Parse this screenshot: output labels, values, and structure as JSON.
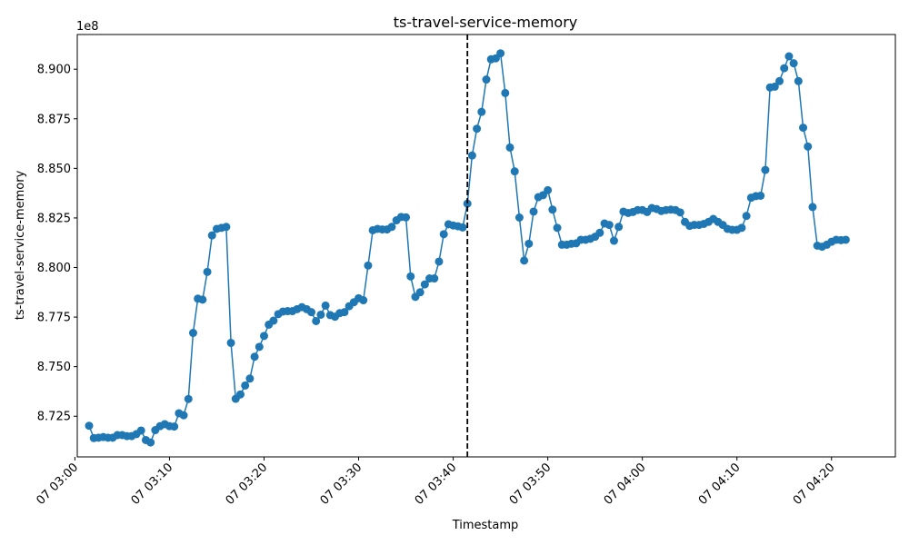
{
  "chart_data": {
    "type": "line",
    "title": "ts-travel-service-memory",
    "xlabel": "Timestamp",
    "ylabel": "ts-travel-service-memory",
    "y_offset_text": "1e8",
    "y_multiplier": 100000000,
    "ylim": [
      8.7045,
      8.9175
    ],
    "xlim": [
      "07 03:00:15",
      "07 04:26:45"
    ],
    "x_tick_labels": [
      "07 03:00",
      "07 03:10",
      "07 03:20",
      "07 03:30",
      "07 03:40",
      "07 03:50",
      "07 04:00",
      "07 04:10",
      "07 04:20"
    ],
    "x_tick_times": [
      "07 03:00:00",
      "07 03:10:00",
      "07 03:20:00",
      "07 03:30:00",
      "07 03:40:00",
      "07 03:50:00",
      "07 04:00:00",
      "07 04:10:00",
      "07 04:20:00"
    ],
    "y_ticks": [
      8.725,
      8.75,
      8.775,
      8.8,
      8.825,
      8.85,
      8.875,
      8.9
    ],
    "y_tick_labels": [
      "8.725",
      "8.750",
      "8.775",
      "8.800",
      "8.825",
      "8.850",
      "8.875",
      "8.900"
    ],
    "grid": false,
    "legend": "none",
    "line_color": "#1f77b4",
    "vline": {
      "x": "07 03:41:30",
      "color": "#000000",
      "style": "dashed"
    },
    "series": [
      {
        "x": [
          "07 03:01:30",
          "07 03:02:00",
          "07 03:02:30",
          "07 03:03:00",
          "07 03:03:30",
          "07 03:04:00",
          "07 03:04:30",
          "07 03:05:00",
          "07 03:05:30",
          "07 03:06:00",
          "07 03:06:30",
          "07 03:07:00",
          "07 03:07:30",
          "07 03:08:00",
          "07 03:08:30",
          "07 03:09:00",
          "07 03:09:30",
          "07 03:10:00",
          "07 03:10:30",
          "07 03:11:00",
          "07 03:11:30",
          "07 03:12:00",
          "07 03:12:30",
          "07 03:13:00",
          "07 03:13:30",
          "07 03:14:00",
          "07 03:14:30",
          "07 03:15:00",
          "07 03:15:30",
          "07 03:16:00",
          "07 03:16:30",
          "07 03:17:00",
          "07 03:17:30",
          "07 03:18:00",
          "07 03:18:30",
          "07 03:19:00",
          "07 03:19:30",
          "07 03:20:00",
          "07 03:20:30",
          "07 03:21:00",
          "07 03:21:30",
          "07 03:22:00",
          "07 03:22:30",
          "07 03:23:00",
          "07 03:23:30",
          "07 03:24:00",
          "07 03:24:30",
          "07 03:25:00",
          "07 03:25:30",
          "07 03:26:00",
          "07 03:26:30",
          "07 03:27:00",
          "07 03:27:30",
          "07 03:28:00",
          "07 03:28:30",
          "07 03:29:00",
          "07 03:29:30",
          "07 03:30:00",
          "07 03:30:30",
          "07 03:31:00",
          "07 03:31:30",
          "07 03:32:00",
          "07 03:32:30",
          "07 03:33:00",
          "07 03:33:30",
          "07 03:34:00",
          "07 03:34:30",
          "07 03:35:00",
          "07 03:35:30",
          "07 03:36:00",
          "07 03:36:30",
          "07 03:37:00",
          "07 03:37:30",
          "07 03:38:00",
          "07 03:38:30",
          "07 03:39:00",
          "07 03:39:30",
          "07 03:40:00",
          "07 03:40:30",
          "07 03:41:00",
          "07 03:41:30",
          "07 03:42:00",
          "07 03:42:30",
          "07 03:43:00",
          "07 03:43:30",
          "07 03:44:00",
          "07 03:44:30",
          "07 03:45:00",
          "07 03:45:30",
          "07 03:46:00",
          "07 03:46:30",
          "07 03:47:00",
          "07 03:47:30",
          "07 03:48:00",
          "07 03:48:30",
          "07 03:49:00",
          "07 03:49:30",
          "07 03:50:00",
          "07 03:50:30",
          "07 03:51:00",
          "07 03:51:30",
          "07 03:52:00",
          "07 03:52:30",
          "07 03:53:00",
          "07 03:53:30",
          "07 03:54:00",
          "07 03:54:30",
          "07 03:55:00",
          "07 03:55:30",
          "07 03:56:00",
          "07 03:56:30",
          "07 03:57:00",
          "07 03:57:30",
          "07 03:58:00",
          "07 03:58:30",
          "07 03:59:00",
          "07 03:59:30",
          "07 04:00:00",
          "07 04:00:30",
          "07 04:01:00",
          "07 04:01:30",
          "07 04:02:00",
          "07 04:02:30",
          "07 04:03:00",
          "07 04:03:30",
          "07 04:04:00",
          "07 04:04:30",
          "07 04:05:00",
          "07 04:05:30",
          "07 04:06:00",
          "07 04:06:30",
          "07 04:07:00",
          "07 04:07:30",
          "07 04:08:00",
          "07 04:08:30",
          "07 04:09:00",
          "07 04:09:30",
          "07 04:10:00",
          "07 04:10:30",
          "07 04:11:00",
          "07 04:11:30",
          "07 04:12:00",
          "07 04:12:30",
          "07 04:13:00",
          "07 04:13:30",
          "07 04:14:00",
          "07 04:14:30",
          "07 04:15:00",
          "07 04:15:30",
          "07 04:16:00",
          "07 04:16:30",
          "07 04:17:00",
          "07 04:17:30",
          "07 04:18:00",
          "07 04:18:30",
          "07 04:19:00",
          "07 04:19:30",
          "07 04:20:00",
          "07 04:20:30",
          "07 04:21:00",
          "07 04:21:30"
        ],
        "y": [
          8.7202,
          8.714,
          8.7142,
          8.7145,
          8.7142,
          8.7142,
          8.7155,
          8.7155,
          8.715,
          8.715,
          8.716,
          8.7178,
          8.713,
          8.7118,
          8.718,
          8.72,
          8.721,
          8.72,
          8.7198,
          8.7265,
          8.7255,
          8.7337,
          8.767,
          8.7843,
          8.7838,
          8.7978,
          8.8162,
          8.8195,
          8.82,
          8.8205,
          8.762,
          8.7338,
          8.736,
          8.7405,
          8.744,
          8.755,
          8.76,
          8.7655,
          8.7712,
          8.7732,
          8.7765,
          8.7778,
          8.778,
          8.778,
          8.779,
          8.78,
          8.779,
          8.7775,
          8.773,
          8.7762,
          8.7808,
          8.776,
          8.7752,
          8.777,
          8.7775,
          8.7805,
          8.7825,
          8.7845,
          8.7835,
          8.801,
          8.8188,
          8.8195,
          8.8192,
          8.8192,
          8.8205,
          8.8238,
          8.8255,
          8.8253,
          8.7955,
          8.7852,
          8.7875,
          8.7915,
          8.7945,
          8.7945,
          8.803,
          8.8168,
          8.8218,
          8.8212,
          8.8208,
          8.8202,
          8.8322,
          8.8565,
          8.87,
          8.8785,
          8.8948,
          8.905,
          8.9055,
          8.908,
          8.888,
          8.8605,
          8.8485,
          8.8252,
          8.8035,
          8.812,
          8.8282,
          8.8355,
          8.8365,
          8.839,
          8.8292,
          8.82,
          8.8115,
          8.8115,
          8.812,
          8.8122,
          8.814,
          8.814,
          8.8145,
          8.8155,
          8.8175,
          8.8222,
          8.8215,
          8.8135,
          8.8205,
          8.8282,
          8.8275,
          8.828,
          8.829,
          8.829,
          8.828,
          8.83,
          8.8295,
          8.8285,
          8.829,
          8.8292,
          8.829,
          8.8278,
          8.823,
          8.821,
          8.8215,
          8.8215,
          8.822,
          8.823,
          8.8245,
          8.823,
          8.8215,
          8.8195,
          8.819,
          8.819,
          8.82,
          8.826,
          8.8352,
          8.836,
          8.8362,
          8.8492,
          8.8908,
          8.8912,
          8.894,
          8.9005,
          8.9065,
          8.903,
          8.894,
          8.8705,
          8.861,
          8.8305,
          8.811,
          8.8105,
          8.8115,
          8.813,
          8.814,
          8.8138,
          8.814
        ]
      }
    ]
  }
}
